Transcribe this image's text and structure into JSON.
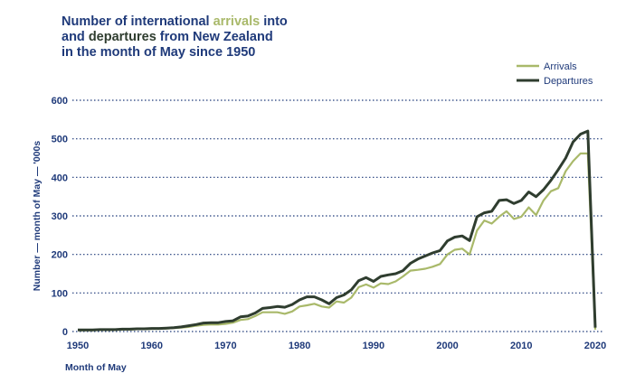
{
  "title": {
    "line1_pre": "Number of international ",
    "line1_hl": "arrivals",
    "line1_post": " into",
    "line2_pre": "and ",
    "line2_hl": "departures",
    "line2_post": " from New Zealand",
    "line3": "in the month of May since 1950"
  },
  "colors": {
    "arrivals": "#a9b96a",
    "departures": "#2f3d2f",
    "text": "#1f3a7a",
    "grid": "#1f3a7a"
  },
  "chart_data": {
    "type": "line",
    "xlabel": "Month of May",
    "ylabel": "Number — month of May — '000s",
    "xlim": [
      1950,
      2020
    ],
    "ylim": [
      0,
      600
    ],
    "xticks": [
      1950,
      1960,
      1970,
      1980,
      1990,
      2000,
      2010,
      2020
    ],
    "yticks": [
      0,
      100,
      200,
      300,
      400,
      500,
      600
    ],
    "grid": "horizontal dotted",
    "legend": "top-right",
    "x": [
      1950,
      1951,
      1952,
      1953,
      1954,
      1955,
      1956,
      1957,
      1958,
      1959,
      1960,
      1961,
      1962,
      1963,
      1964,
      1965,
      1966,
      1967,
      1968,
      1969,
      1970,
      1971,
      1972,
      1973,
      1974,
      1975,
      1976,
      1977,
      1978,
      1979,
      1980,
      1981,
      1982,
      1983,
      1984,
      1985,
      1986,
      1987,
      1988,
      1989,
      1990,
      1991,
      1992,
      1993,
      1994,
      1995,
      1996,
      1997,
      1998,
      1999,
      2000,
      2001,
      2002,
      2003,
      2004,
      2005,
      2006,
      2007,
      2008,
      2009,
      2010,
      2011,
      2012,
      2013,
      2014,
      2015,
      2016,
      2017,
      2018,
      2019,
      2020
    ],
    "series": [
      {
        "name": "Arrivals",
        "values": [
          3,
          3,
          3,
          4,
          4,
          4,
          5,
          5,
          6,
          6,
          7,
          7,
          8,
          9,
          10,
          12,
          15,
          17,
          18,
          18,
          20,
          23,
          30,
          32,
          40,
          50,
          50,
          50,
          46,
          52,
          65,
          68,
          72,
          65,
          62,
          78,
          75,
          88,
          115,
          122,
          114,
          125,
          123,
          130,
          143,
          158,
          160,
          163,
          168,
          175,
          200,
          212,
          215,
          200,
          262,
          288,
          280,
          298,
          312,
          292,
          298,
          322,
          302,
          340,
          364,
          372,
          416,
          442,
          462,
          462,
          5
        ]
      },
      {
        "name": "Departures",
        "values": [
          4,
          4,
          4,
          5,
          5,
          5,
          6,
          6,
          7,
          7,
          8,
          8,
          9,
          10,
          12,
          15,
          18,
          22,
          23,
          23,
          26,
          28,
          38,
          40,
          48,
          60,
          62,
          65,
          63,
          70,
          82,
          90,
          90,
          82,
          72,
          88,
          95,
          108,
          132,
          140,
          130,
          143,
          147,
          150,
          158,
          177,
          188,
          196,
          204,
          210,
          235,
          245,
          248,
          236,
          298,
          308,
          312,
          340,
          342,
          332,
          340,
          362,
          350,
          368,
          392,
          420,
          450,
          492,
          512,
          520,
          10
        ]
      }
    ]
  }
}
